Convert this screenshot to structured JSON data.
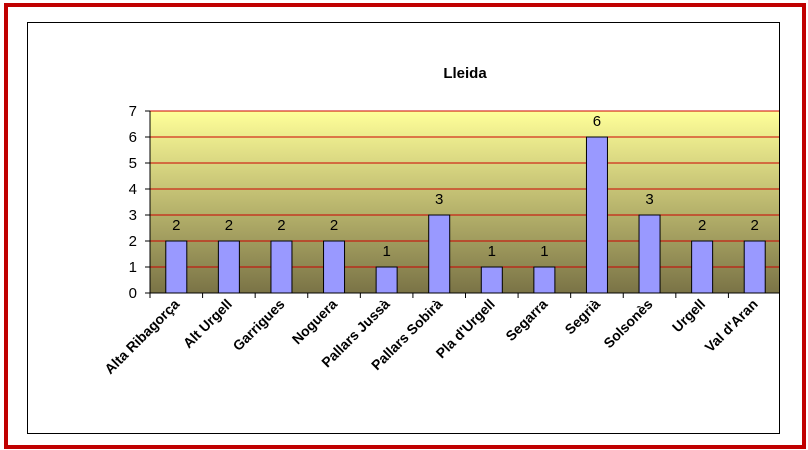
{
  "colors": {
    "frame_border": "#c00000",
    "plot_top": "#ffff99",
    "plot_bottom": "#7a7346",
    "plot_border": "#cc3333",
    "gridline": "#cc0000",
    "bar_fill": "#9999ff",
    "bar_stroke": "#000000"
  },
  "chart_data": {
    "type": "bar",
    "title": "Lleida",
    "xlabel": "",
    "ylabel": "",
    "ylim": [
      0,
      7
    ],
    "yticks": [
      "0",
      "1",
      "2",
      "3",
      "4",
      "5",
      "6",
      "7"
    ],
    "grid": true,
    "legend": "none",
    "categories": [
      "Alta Ribagorça",
      "Alt Urgell",
      "Garrigues",
      "Noguera",
      "Pallars Jussà",
      "Pallars Sobirà",
      "Pla d'Urgell",
      "Segarra",
      "Segrià",
      "Solsonès",
      "Urgell",
      "Val d'Aran"
    ],
    "values": [
      2,
      2,
      2,
      2,
      1,
      3,
      1,
      1,
      6,
      3,
      2,
      2
    ],
    "data_labels": [
      "2",
      "2",
      "2",
      "2",
      "1",
      "3",
      "1",
      "1",
      "6",
      "3",
      "2",
      "2"
    ]
  }
}
